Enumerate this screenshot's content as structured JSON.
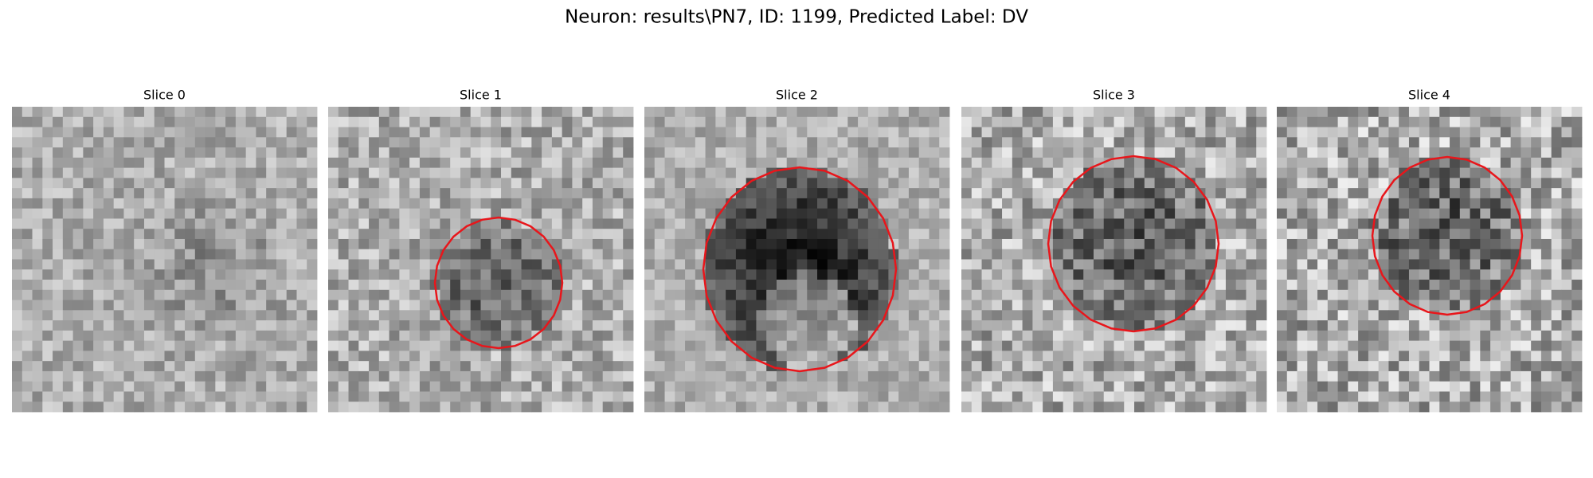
{
  "figure": {
    "title": "Neuron: results\\PN7, ID: 1199, Predicted Label: DV",
    "panels": [
      {
        "title": "Slice 0"
      },
      {
        "title": "Slice 1"
      },
      {
        "title": "Slice 2"
      },
      {
        "title": "Slice 3"
      },
      {
        "title": "Slice 4"
      }
    ]
  }
}
